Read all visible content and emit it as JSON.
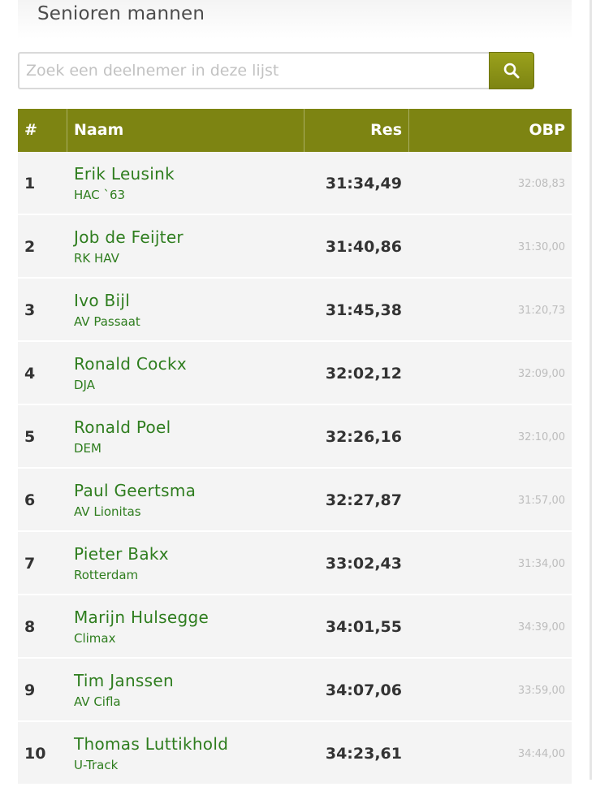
{
  "panel": {
    "title": "Senioren mannen"
  },
  "search": {
    "placeholder": "Zoek een deelnemer in deze lijst",
    "icon": "search-icon"
  },
  "table": {
    "headers": {
      "rank": "#",
      "name": "Naam",
      "result": "Res",
      "obp": "OBP"
    },
    "rows": [
      {
        "rank": "1",
        "name": "Erik Leusink",
        "club": "HAC `63",
        "result": "31:34,49",
        "obp": "32:08,83"
      },
      {
        "rank": "2",
        "name": "Job de Feijter",
        "club": "RK HAV",
        "result": "31:40,86",
        "obp": "31:30,00"
      },
      {
        "rank": "3",
        "name": "Ivo Bijl",
        "club": "AV Passaat",
        "result": "31:45,38",
        "obp": "31:20,73"
      },
      {
        "rank": "4",
        "name": "Ronald Cockx",
        "club": "DJA",
        "result": "32:02,12",
        "obp": "32:09,00"
      },
      {
        "rank": "5",
        "name": "Ronald Poel",
        "club": "DEM",
        "result": "32:26,16",
        "obp": "32:10,00"
      },
      {
        "rank": "6",
        "name": "Paul Geertsma",
        "club": "AV Lionitas",
        "result": "32:27,87",
        "obp": "31:57,00"
      },
      {
        "rank": "7",
        "name": "Pieter Bakx",
        "club": "Rotterdam",
        "result": "33:02,43",
        "obp": "31:34,00"
      },
      {
        "rank": "8",
        "name": "Marijn Hulsegge",
        "club": "Climax",
        "result": "34:01,55",
        "obp": "34:39,00"
      },
      {
        "rank": "9",
        "name": "Tim Janssen",
        "club": "AV Cifla",
        "result": "34:07,06",
        "obp": "33:59,00"
      },
      {
        "rank": "10",
        "name": "Thomas Luttikhold",
        "club": "U-Track",
        "result": "34:23,61",
        "obp": "34:44,00"
      }
    ]
  },
  "colors": {
    "header_bg": "#7d8412",
    "row_bg": "#f4f4f4",
    "name_link": "#2e7d1e",
    "obp_text": "#bdbdbd"
  }
}
